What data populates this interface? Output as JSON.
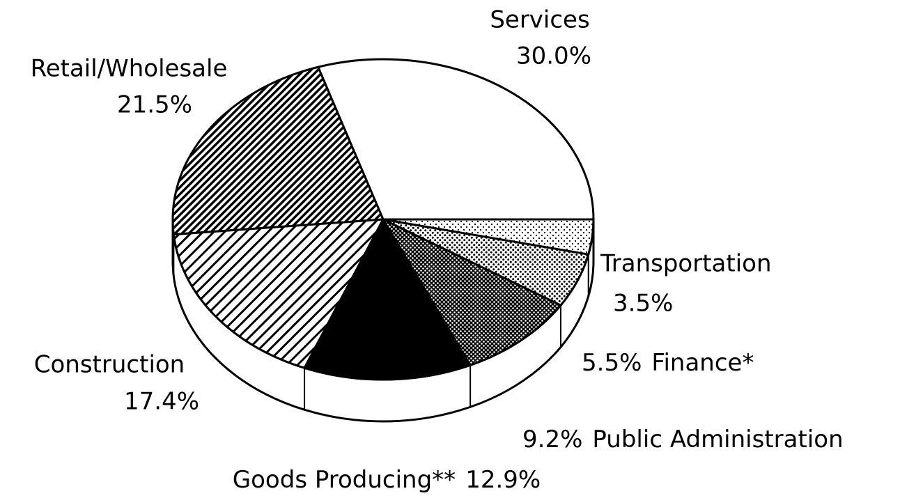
{
  "chart_data": {
    "type": "pie",
    "categories": [
      "Services",
      "Retail/Wholesale",
      "Construction",
      "Goods Producing**",
      "Public Administration",
      "Finance*",
      "Transportation"
    ],
    "values": [
      30.0,
      21.5,
      17.4,
      12.9,
      9.2,
      5.5,
      3.5
    ],
    "value_labels": [
      "30.0%",
      "21.5%",
      "17.4%",
      "12.9%",
      "9.2%",
      "5.5%",
      "3.5%"
    ],
    "colors": [
      "#ffffff",
      "#000000",
      "#000000",
      "#000000",
      "#000000",
      "#000000",
      "#000000"
    ],
    "patterns": [
      "solid",
      "hatch-dense",
      "hatch",
      "solid",
      "dots-dense",
      "dots",
      "dots-sparse"
    ]
  }
}
